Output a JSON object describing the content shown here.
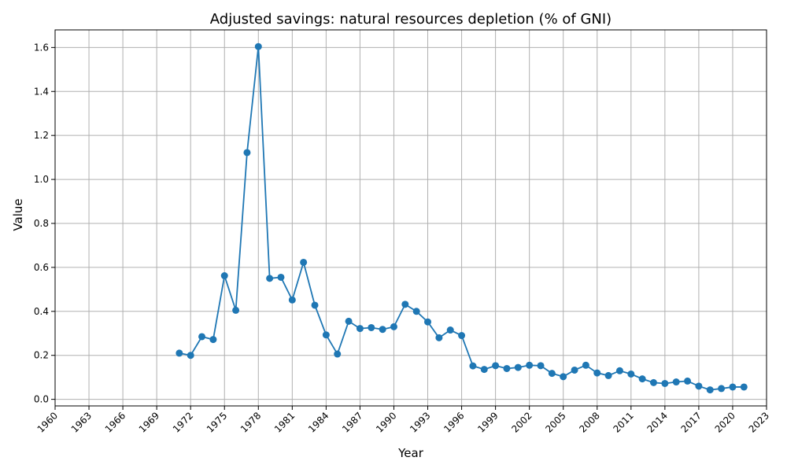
{
  "chart_data": {
    "type": "line",
    "title": "Adjusted savings: natural resources depletion (% of GNI)",
    "xlabel": "Year",
    "ylabel": "Value",
    "xlim": [
      1960,
      2023
    ],
    "ylim": [
      -0.03,
      1.68
    ],
    "xticks": [
      1960,
      1963,
      1966,
      1969,
      1972,
      1975,
      1978,
      1981,
      1984,
      1987,
      1990,
      1993,
      1996,
      1999,
      2002,
      2005,
      2008,
      2011,
      2014,
      2017,
      2020,
      2023
    ],
    "yticks": [
      0.0,
      0.2,
      0.4,
      0.6,
      0.8,
      1.0,
      1.2,
      1.4,
      1.6
    ],
    "grid": true,
    "color": "#1f77b4",
    "series": [
      {
        "x": [
          1971,
          1972,
          1973,
          1974,
          1975,
          1976,
          1977,
          1978,
          1979,
          1980,
          1981,
          1982,
          1983,
          1984,
          1985,
          1986,
          1987,
          1988,
          1989,
          1990,
          1991,
          1992,
          1993,
          1994,
          1995,
          1996,
          1997,
          1998,
          1999,
          2000,
          2001,
          2002,
          2003,
          2004,
          2005,
          2006,
          2007,
          2008,
          2009,
          2010,
          2011,
          2012,
          2013,
          2014,
          2015,
          2016,
          2017,
          2018,
          2019,
          2020,
          2021
        ],
        "values": [
          0.21,
          0.2,
          0.285,
          0.272,
          0.562,
          0.405,
          1.122,
          1.604,
          0.55,
          0.555,
          0.452,
          0.623,
          0.428,
          0.293,
          0.206,
          0.355,
          0.322,
          0.326,
          0.318,
          0.33,
          0.432,
          0.4,
          0.352,
          0.28,
          0.315,
          0.29,
          0.152,
          0.136,
          0.153,
          0.14,
          0.145,
          0.155,
          0.153,
          0.118,
          0.103,
          0.133,
          0.155,
          0.12,
          0.108,
          0.13,
          0.115,
          0.093,
          0.076,
          0.072,
          0.079,
          0.083,
          0.06,
          0.043,
          0.049,
          0.056,
          0.056
        ]
      }
    ]
  }
}
